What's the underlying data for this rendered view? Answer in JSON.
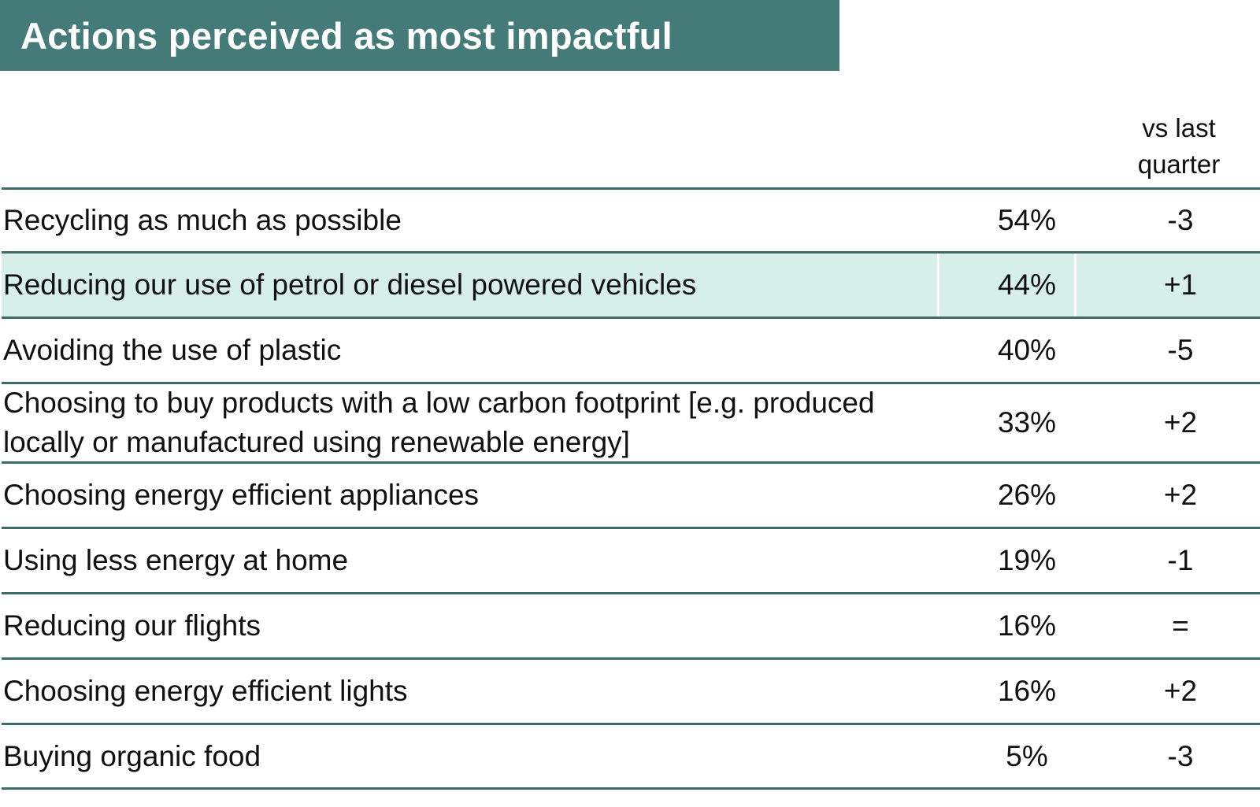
{
  "header": {
    "title": "Actions perceived as most impactful",
    "change_col_line1": "vs last",
    "change_col_line2": "quarter"
  },
  "colors": {
    "banner": "#447b79",
    "highlight_row": "#d7efe9",
    "rule": "#3d6b68"
  },
  "chart_data": {
    "type": "table",
    "title": "Actions perceived as most impactful",
    "columns": [
      "",
      "",
      "vs last quarter"
    ],
    "highlighted_row": 1,
    "rows": [
      {
        "label": "Recycling as much as possible",
        "value": "54%",
        "change": "-3"
      },
      {
        "label": "Reducing our use of petrol or diesel powered vehicles",
        "value": "44%",
        "change": "+1"
      },
      {
        "label": "Avoiding the use of plastic",
        "value": "40%",
        "change": "-5"
      },
      {
        "label": "Choosing to buy products with a low carbon footprint [e.g. produced locally or manufactured using renewable energy]",
        "value": "33%",
        "change": "+2"
      },
      {
        "label": "Choosing energy efficient appliances",
        "value": "26%",
        "change": "+2"
      },
      {
        "label": "Using less energy at home",
        "value": "19%",
        "change": "-1"
      },
      {
        "label": "Reducing our flights",
        "value": "16%",
        "change": "="
      },
      {
        "label": "Choosing energy efficient lights",
        "value": "16%",
        "change": "+2"
      },
      {
        "label": "Buying organic food",
        "value": "5%",
        "change": "-3"
      }
    ]
  }
}
